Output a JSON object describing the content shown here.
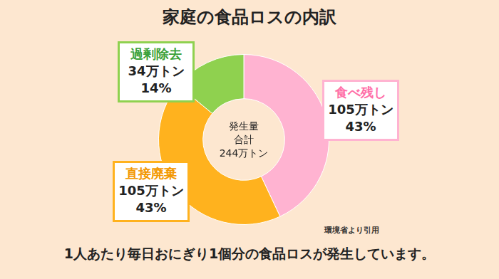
{
  "chart_data": {
    "type": "doughnut",
    "title": "家庭の食品ロスの内訳",
    "categories": [
      "食べ残し",
      "直接廃棄",
      "過剰除去"
    ],
    "values": [
      43,
      43,
      14
    ],
    "value_labels": [
      "43%",
      "43%",
      "14%"
    ],
    "amount_labels": [
      "105万トン",
      "105万トン",
      "34万トン"
    ],
    "colors": [
      "#ffb3d1",
      "#ffb21e",
      "#8fd14f"
    ],
    "center_text": [
      "発生量",
      "合計",
      "244万トン"
    ],
    "annotations": [
      "1人あたり毎日おにぎり1個分の食品ロスが発生しています。",
      "環境省より引用"
    ],
    "data_labels": true
  }
}
